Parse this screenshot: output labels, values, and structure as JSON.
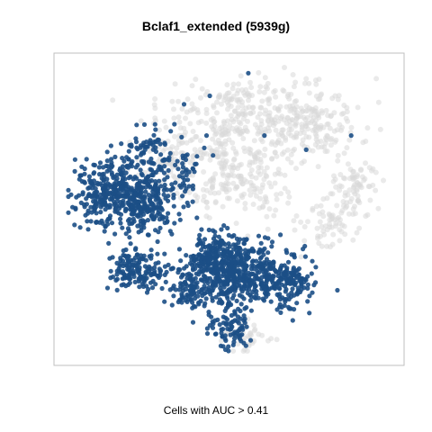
{
  "chart_data": {
    "type": "scatter",
    "title": "Bclaf1_extended (5939g)",
    "xlabel": "Cells with AUC > 0.41",
    "ylabel": "",
    "grid": false,
    "axes_ticks": false,
    "colors": {
      "positive": "#1c4f86",
      "negative": "#d9d9d9",
      "panel_border": "#bfbfbf"
    },
    "series": [
      {
        "name": "",
        "role": "AUC above threshold",
        "clusters": [
          {
            "cx": 0.13,
            "cy": 0.56,
            "sx": 0.055,
            "sy": 0.055,
            "n": 300
          },
          {
            "cx": 0.24,
            "cy": 0.525,
            "sx": 0.05,
            "sy": 0.06,
            "n": 250
          },
          {
            "cx": 0.28,
            "cy": 0.67,
            "sx": 0.04,
            "sy": 0.05,
            "n": 60
          },
          {
            "cx": 0.235,
            "cy": 0.725,
            "sx": 0.025,
            "sy": 0.03,
            "n": 30
          },
          {
            "cx": 0.37,
            "cy": 0.63,
            "sx": 0.02,
            "sy": 0.04,
            "n": 30
          },
          {
            "cx": 0.215,
            "cy": 0.28,
            "sx": 0.045,
            "sy": 0.035,
            "n": 150
          },
          {
            "cx": 0.5,
            "cy": 0.28,
            "sx": 0.07,
            "sy": 0.06,
            "n": 500
          },
          {
            "cx": 0.66,
            "cy": 0.25,
            "sx": 0.06,
            "sy": 0.05,
            "n": 220
          },
          {
            "cx": 0.45,
            "cy": 0.33,
            "sx": 0.04,
            "sy": 0.04,
            "n": 100
          },
          {
            "cx": 0.5,
            "cy": 0.08,
            "sx": 0.03,
            "sy": 0.035,
            "n": 80
          },
          {
            "cx": 0.38,
            "cy": 0.2,
            "sx": 0.04,
            "sy": 0.03,
            "n": 60
          }
        ],
        "singles": [
          [
            0.56,
            0.98
          ],
          [
            0.43,
            0.76
          ],
          [
            0.61,
            0.76
          ],
          [
            0.88,
            0.76
          ],
          [
            0.74,
            0.71
          ],
          [
            0.36,
            0.87
          ],
          [
            0.45,
            0.69
          ],
          [
            0.28,
            0.42
          ],
          [
            0.66,
            0.41
          ],
          [
            0.73,
            0.36
          ],
          [
            0.6,
            0.38
          ],
          [
            0.4,
            0.47
          ],
          [
            0.33,
            0.8
          ],
          [
            0.44,
            0.9
          ]
        ]
      },
      {
        "name": "",
        "role": "AUC below threshold",
        "clusters": [
          {
            "cx": 0.56,
            "cy": 0.82,
            "sx": 0.14,
            "sy": 0.08,
            "n": 320
          },
          {
            "cx": 0.76,
            "cy": 0.8,
            "sx": 0.08,
            "sy": 0.06,
            "n": 130
          },
          {
            "cx": 0.48,
            "cy": 0.63,
            "sx": 0.08,
            "sy": 0.08,
            "n": 160
          },
          {
            "cx": 0.89,
            "cy": 0.58,
            "sx": 0.04,
            "sy": 0.05,
            "n": 80
          },
          {
            "cx": 0.81,
            "cy": 0.45,
            "sx": 0.05,
            "sy": 0.04,
            "n": 60
          },
          {
            "cx": 0.31,
            "cy": 0.68,
            "sx": 0.06,
            "sy": 0.05,
            "n": 70
          },
          {
            "cx": 0.6,
            "cy": 0.58,
            "sx": 0.05,
            "sy": 0.05,
            "n": 60
          },
          {
            "cx": 0.56,
            "cy": 0.06,
            "sx": 0.04,
            "sy": 0.03,
            "n": 40
          }
        ],
        "singles": []
      }
    ]
  },
  "caption": "Cells with AUC > 0.41"
}
